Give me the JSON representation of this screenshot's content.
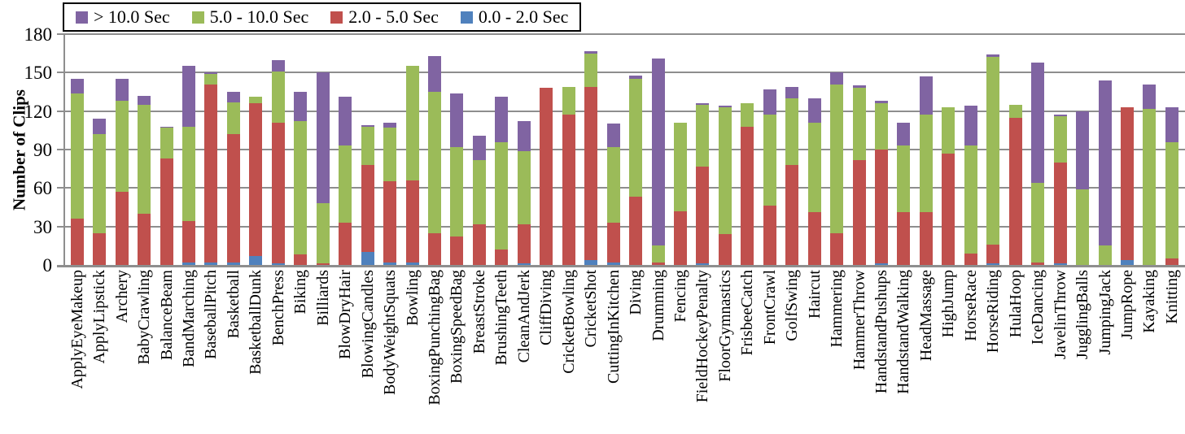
{
  "chart_data": {
    "type": "bar",
    "stacked": true,
    "title": "",
    "xlabel": "",
    "ylabel": "Number of Clips",
    "ylim": [
      0,
      180
    ],
    "yticks": [
      0,
      30,
      60,
      90,
      120,
      150,
      180
    ],
    "grid": "horizontal",
    "legend_position": "top-left",
    "legend_order": [
      "> 10.0 Sec",
      "5.0 - 10.0 Sec",
      "2.0 - 5.0 Sec",
      "0.0 - 2.0 Sec"
    ],
    "categories": [
      "ApplyEyeMakeup",
      "ApplyLipstick",
      "Archery",
      "BabyCrawling",
      "BalanceBeam",
      "BandMarching",
      "BaseballPitch",
      "Basketball",
      "BasketballDunk",
      "BenchPress",
      "Biking",
      "Billiards",
      "BlowDryHair",
      "BlowingCandles",
      "BodyWeightSquats",
      "Bowling",
      "BoxingPunchingBag",
      "BoxingSpeedBag",
      "BreastStroke",
      "BrushingTeeth",
      "CleanAndJerk",
      "CliffDiving",
      "CricketBowling",
      "CricketShot",
      "CuttingInKitchen",
      "Diving",
      "Drumming",
      "Fencing",
      "FieldHockeyPenalty",
      "FloorGymnastics",
      "FrisbeeCatch",
      "FrontCrawl",
      "GolfSwing",
      "Haircut",
      "Hammering",
      "HammerThrow",
      "HandstandPushups",
      "HandstandWalking",
      "HeadMassage",
      "HighJump",
      "HorseRace",
      "HorseRiding",
      "HulaHoop",
      "IceDancing",
      "JavelinThrow",
      "JugglingBalls",
      "JumpingJack",
      "JumpRope",
      "Kayaking",
      "Knitting"
    ],
    "series": [
      {
        "name": "0.0 - 2.0 Sec",
        "color": "#4F81BD",
        "values": [
          0,
          0,
          0,
          0,
          0,
          2,
          2,
          2,
          7,
          1,
          0,
          0,
          0,
          10,
          2,
          2,
          0,
          0,
          0,
          0,
          1,
          0,
          0,
          4,
          2,
          0,
          0,
          0,
          1,
          0,
          0,
          0,
          0,
          0,
          0,
          0,
          1,
          0,
          0,
          0,
          0,
          1,
          0,
          0,
          1,
          0,
          0,
          4,
          0,
          0
        ]
      },
      {
        "name": "2.0 - 5.0 Sec",
        "color": "#C0504D",
        "values": [
          36,
          25,
          57,
          40,
          83,
          32,
          139,
          100,
          119,
          110,
          8,
          1,
          33,
          68,
          63,
          64,
          25,
          22,
          32,
          12,
          31,
          138,
          117,
          135,
          31,
          53,
          2,
          42,
          76,
          24,
          108,
          46,
          78,
          41,
          25,
          82,
          89,
          41,
          41,
          87,
          9,
          15,
          115,
          2,
          79,
          0,
          0,
          119,
          0,
          5
        ]
      },
      {
        "name": "5.0 - 10.0 Sec",
        "color": "#9BBB59",
        "values": [
          98,
          77,
          71,
          85,
          24,
          74,
          8,
          25,
          5,
          40,
          104,
          47,
          60,
          30,
          42,
          89,
          110,
          70,
          50,
          84,
          57,
          0,
          22,
          26,
          59,
          92,
          13,
          69,
          48,
          99,
          18,
          71,
          52,
          70,
          116,
          56,
          36,
          52,
          76,
          36,
          84,
          146,
          10,
          62,
          36,
          59,
          15,
          0,
          122,
          91
        ]
      },
      {
        "name": "> 10.0 Sec",
        "color": "#8064A2",
        "values": [
          11,
          12,
          17,
          7,
          1,
          47,
          1,
          8,
          0,
          9,
          23,
          102,
          38,
          1,
          4,
          0,
          28,
          42,
          19,
          35,
          23,
          0,
          0,
          2,
          18,
          3,
          146,
          0,
          1,
          1,
          0,
          20,
          9,
          19,
          9,
          2,
          2,
          18,
          30,
          0,
          31,
          2,
          0,
          94,
          1,
          61,
          129,
          0,
          19,
          27
        ]
      }
    ]
  },
  "axes": {
    "y_title": "Number of Clips",
    "y_tick_labels": [
      "0",
      "30",
      "60",
      "90",
      "120",
      "150",
      "180"
    ]
  },
  "colors": {
    "grid": "#8e8e8e",
    "axis": "#8e8e8e",
    "text": "#000000",
    "background": "#ffffff",
    "legend_border": "#000000"
  }
}
